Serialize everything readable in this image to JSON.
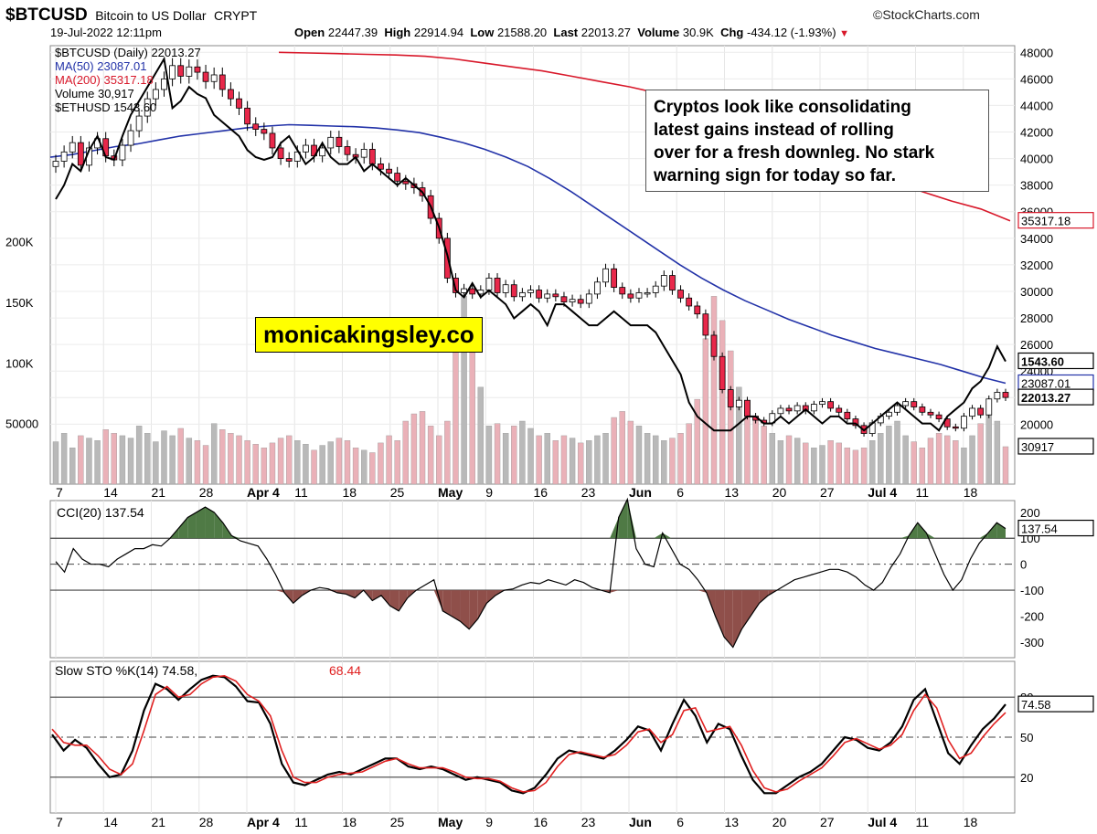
{
  "header": {
    "symbol": "$BTCUSD",
    "name": "Bitcoin to US Dollar",
    "exchange": "CRYPT",
    "brand": "©StockCharts.com",
    "datetime": "19-Jul-2022 12:11pm",
    "open_label": "Open",
    "open": "22447.39",
    "high_label": "High",
    "high": "22914.94",
    "low_label": "Low",
    "low": "21588.20",
    "last_label": "Last",
    "last": "22013.27",
    "volume_label": "Volume",
    "volume": "30.9K",
    "chg_label": "Chg",
    "chg": "-434.12 (-1.93%)",
    "chg_arrow": "▼"
  },
  "callout": {
    "lines": [
      "Cryptos look like consolidating",
      "latest gains instead of rolling",
      "over for a fresh downleg. No stark",
      "warning sign for today so far."
    ]
  },
  "watermark": "monicakingsley.co",
  "colors": {
    "up": "#ffffff",
    "down": "#e8284a",
    "ma50": "#2232a8",
    "ma200": "#d8182a",
    "eth": "#000000",
    "vol_up": "#b9b9b9",
    "vol_down": "#eab1b8",
    "cci_pos": "#4f7a45",
    "cci_neg": "#8f4f4a",
    "stoch_d": "#e02020"
  },
  "chart_data": [
    {
      "type": "candlestick",
      "panel": "price",
      "legend": [
        {
          "symbol": "$BTCUSD (Daily) 22013.27",
          "color": "#000000"
        },
        {
          "symbol": "MA(50) 23087.01",
          "color": "#2232a8"
        },
        {
          "symbol": "MA(200) 35317.18",
          "color": "#d8182a"
        },
        {
          "symbol": "Volume 30,917",
          "color": "#000000"
        },
        {
          "symbol": "$ETHUSD 1543.60",
          "color": "#000000"
        }
      ],
      "x_ticks": [
        "7",
        "14",
        "21",
        "28",
        "Apr 4",
        "11",
        "18",
        "25",
        "May",
        "9",
        "16",
        "23",
        "Jun",
        "6",
        "13",
        "20",
        "27",
        "Jul 4",
        "11",
        "18"
      ],
      "y_ticks": [
        20000,
        22000,
        24000,
        26000,
        28000,
        30000,
        32000,
        34000,
        36000,
        38000,
        40000,
        42000,
        44000,
        46000,
        48000
      ],
      "ylim": [
        17000,
        48500
      ],
      "volume_ticks": [
        50000,
        100000,
        150000,
        200000
      ],
      "volume_tick_labels": [
        "50000",
        "100K",
        "150K",
        "200K"
      ],
      "btc_close": [
        39800,
        40500,
        41200,
        39500,
        40800,
        41500,
        40200,
        39900,
        41000,
        42100,
        43200,
        44500,
        45200,
        46000,
        47000,
        46200,
        46900,
        46500,
        45800,
        46300,
        45200,
        44500,
        43800,
        42600,
        42200,
        41900,
        40800,
        40000,
        39800,
        40500,
        41000,
        40200,
        40800,
        41600,
        40900,
        40300,
        40100,
        40700,
        39600,
        39200,
        38900,
        38300,
        38100,
        37800,
        37200,
        35500,
        34000,
        31000,
        29900,
        30200,
        29800,
        30100,
        31000,
        29900,
        30500,
        29600,
        29900,
        30100,
        29500,
        29800,
        29600,
        29200,
        29400,
        29100,
        29800,
        30700,
        31700,
        30300,
        29800,
        29500,
        29900,
        29900,
        30400,
        31200,
        30100,
        29500,
        28900,
        28300,
        26700,
        25100,
        22600,
        21300,
        21800,
        20600,
        20300,
        20100,
        20800,
        21200,
        21000,
        21400,
        21000,
        21500,
        21700,
        21200,
        20900,
        20400,
        19900,
        19300,
        20100,
        20600,
        20900,
        21400,
        21700,
        21300,
        20900,
        20700,
        20400,
        19800,
        19700,
        20600,
        21200,
        20700,
        21900,
        22400,
        22013
      ],
      "eth_close": [
        2700,
        2800,
        2950,
        2900,
        3050,
        3150,
        3000,
        2980,
        3150,
        3300,
        3400,
        3500,
        3600,
        3700,
        3350,
        3400,
        3500,
        3450,
        3420,
        3300,
        3250,
        3200,
        3150,
        3050,
        3000,
        2980,
        3000,
        3100,
        3150,
        3050,
        2950,
        3000,
        3100,
        3000,
        2950,
        2950,
        3000,
        2900,
        2950,
        2900,
        2850,
        2800,
        2850,
        2800,
        2750,
        2650,
        2500,
        2300,
        2050,
        2000,
        2100,
        2000,
        2050,
        2000,
        1950,
        1850,
        1900,
        1950,
        1900,
        1800,
        1950,
        1950,
        1900,
        1850,
        1800,
        1800,
        1850,
        1900,
        1850,
        1800,
        1800,
        1800,
        1750,
        1650,
        1550,
        1450,
        1250,
        1150,
        1100,
        1050,
        1050,
        1050,
        1100,
        1150,
        1150,
        1100,
        1100,
        1150,
        1100,
        1150,
        1200,
        1150,
        1100,
        1150,
        1150,
        1100,
        1100,
        1050,
        1100,
        1150,
        1200,
        1250,
        1200,
        1150,
        1100,
        1100,
        1050,
        1150,
        1200,
        1250,
        1350,
        1400,
        1500,
        1650,
        1543
      ],
      "ma50": [
        40100,
        40300,
        40600,
        40900,
        41100,
        41400,
        41700,
        41900,
        42100,
        42300,
        42450,
        42550,
        42500,
        42450,
        42400,
        42300,
        42150,
        41950,
        41600,
        41200,
        40700,
        40100,
        39400,
        38500,
        37500,
        36400,
        35300,
        34200,
        33100,
        32000,
        31000,
        30100,
        29300,
        28600,
        27900,
        27300,
        26700,
        26200,
        25700,
        25300,
        24900,
        24500,
        24000,
        23500,
        23087
      ],
      "ma200": [
        48000,
        47950,
        47900,
        47850,
        47800,
        47700,
        47500,
        47200,
        46900,
        46600,
        46200,
        45800,
        45400,
        44900,
        44300,
        43600,
        42800,
        41900,
        41000,
        40000,
        39100,
        38300,
        37500,
        36800,
        36200,
        35317
      ],
      "volume": [
        35000,
        42000,
        30000,
        40000,
        38000,
        36000,
        45000,
        42000,
        40000,
        38000,
        48000,
        42000,
        35000,
        44000,
        40000,
        46000,
        38000,
        36000,
        32000,
        50000,
        45000,
        42000,
        40000,
        36000,
        33000,
        30000,
        34000,
        38000,
        40000,
        36000,
        33000,
        28000,
        32000,
        35000,
        38000,
        36000,
        30000,
        28000,
        26000,
        34000,
        40000,
        36000,
        52000,
        58000,
        60000,
        48000,
        40000,
        52000,
        130000,
        155000,
        135000,
        80000,
        48000,
        50000,
        42000,
        48000,
        52000,
        46000,
        40000,
        42000,
        36000,
        40000,
        38000,
        34000,
        36000,
        40000,
        42000,
        55000,
        60000,
        52000,
        48000,
        42000,
        40000,
        36000,
        38000,
        42000,
        50000,
        70000,
        120000,
        155000,
        135000,
        110000,
        80000,
        60000,
        55000,
        48000,
        42000,
        36000,
        40000,
        38000,
        34000,
        30000,
        32000,
        36000,
        34000,
        30000,
        28000,
        30000,
        36000,
        42000,
        48000,
        52000,
        40000,
        35000,
        30000,
        38000,
        42000,
        40000,
        36000,
        30000,
        40000,
        50000,
        65000,
        52000,
        30917
      ]
    },
    {
      "type": "line",
      "panel": "CCI",
      "series_name": "CCI(20) 137.54",
      "y_ticks": [
        200,
        100,
        0,
        -100,
        -200,
        -300
      ],
      "ylim": [
        -360,
        245
      ],
      "values": [
        10,
        -30,
        60,
        20,
        0,
        0,
        -10,
        20,
        40,
        60,
        60,
        75,
        70,
        100,
        140,
        180,
        200,
        220,
        200,
        160,
        110,
        90,
        80,
        70,
        20,
        -40,
        -110,
        -150,
        -120,
        -100,
        -90,
        -95,
        -110,
        -115,
        -130,
        -100,
        -140,
        -120,
        -160,
        -180,
        -130,
        -100,
        -80,
        -60,
        -180,
        -200,
        -220,
        -250,
        -210,
        -150,
        -120,
        -100,
        -95,
        -80,
        -70,
        -75,
        -60,
        -70,
        -80,
        -60,
        -70,
        -90,
        -100,
        -110,
        180,
        250,
        60,
        0,
        -10,
        120,
        60,
        0,
        -20,
        -60,
        -110,
        -200,
        -280,
        -320,
        -250,
        -200,
        -150,
        -120,
        -100,
        -80,
        -60,
        -50,
        -40,
        -30,
        -20,
        -20,
        -30,
        -50,
        -80,
        -100,
        -70,
        -10,
        40,
        110,
        160,
        120,
        40,
        -40,
        -100,
        -60,
        20,
        80,
        120,
        160,
        137.54
      ]
    },
    {
      "type": "line",
      "panel": "Slow STO",
      "series": [
        {
          "name": "Slow STO %K(14) 74.58",
          "color": "#000000",
          "values": [
            52,
            40,
            48,
            42,
            30,
            20,
            22,
            40,
            70,
            90,
            86,
            78,
            86,
            93,
            96,
            95,
            88,
            77,
            76,
            60,
            30,
            16,
            14,
            18,
            22,
            24,
            22,
            26,
            30,
            34,
            34,
            28,
            26,
            28,
            26,
            22,
            18,
            20,
            18,
            16,
            10,
            8,
            12,
            22,
            34,
            40,
            38,
            36,
            34,
            40,
            48,
            58,
            55,
            40,
            60,
            78,
            66,
            46,
            60,
            56,
            36,
            18,
            8,
            8,
            14,
            20,
            24,
            30,
            40,
            50,
            48,
            42,
            40,
            46,
            58,
            78,
            86,
            62,
            38,
            30,
            44,
            56,
            64,
            74.58
          ]
        },
        {
          "name": "%D(3) 68.44",
          "color": "#e02020",
          "values": [
            56,
            46,
            44,
            44,
            36,
            26,
            22,
            30,
            55,
            82,
            88,
            80,
            82,
            90,
            95,
            96,
            92,
            82,
            77,
            66,
            40,
            20,
            16,
            16,
            20,
            22,
            23,
            24,
            28,
            32,
            34,
            30,
            27,
            27,
            27,
            24,
            20,
            19,
            19,
            17,
            12,
            9,
            10,
            16,
            28,
            37,
            39,
            37,
            35,
            37,
            44,
            54,
            56,
            46,
            52,
            70,
            72,
            54,
            56,
            58,
            44,
            25,
            12,
            9,
            11,
            17,
            22,
            27,
            36,
            46,
            49,
            45,
            41,
            44,
            52,
            70,
            82,
            72,
            48,
            34,
            38,
            50,
            60,
            68.44
          ]
        }
      ],
      "y_ticks": [
        80,
        50,
        20
      ],
      "ylim": [
        0,
        100
      ]
    }
  ],
  "axis_labels": {
    "price": [
      "48000",
      "46000",
      "44000",
      "42000",
      "40000",
      "38000",
      "36000",
      "34000",
      "32000",
      "30000",
      "28000",
      "26000",
      "24000",
      "22000",
      "20000"
    ],
    "cci": [
      "200",
      "100",
      "0",
      "-100",
      "-200",
      "-300"
    ],
    "sto": [
      "80",
      "50",
      "20"
    ]
  },
  "badges": {
    "ma200": "35317.18",
    "eth": "1543.60",
    "ma50": "23087.01",
    "last": "22013.27",
    "volume": "30917",
    "cci": "137.54",
    "sto_k": "74.58",
    "sto_d": "68.44"
  }
}
